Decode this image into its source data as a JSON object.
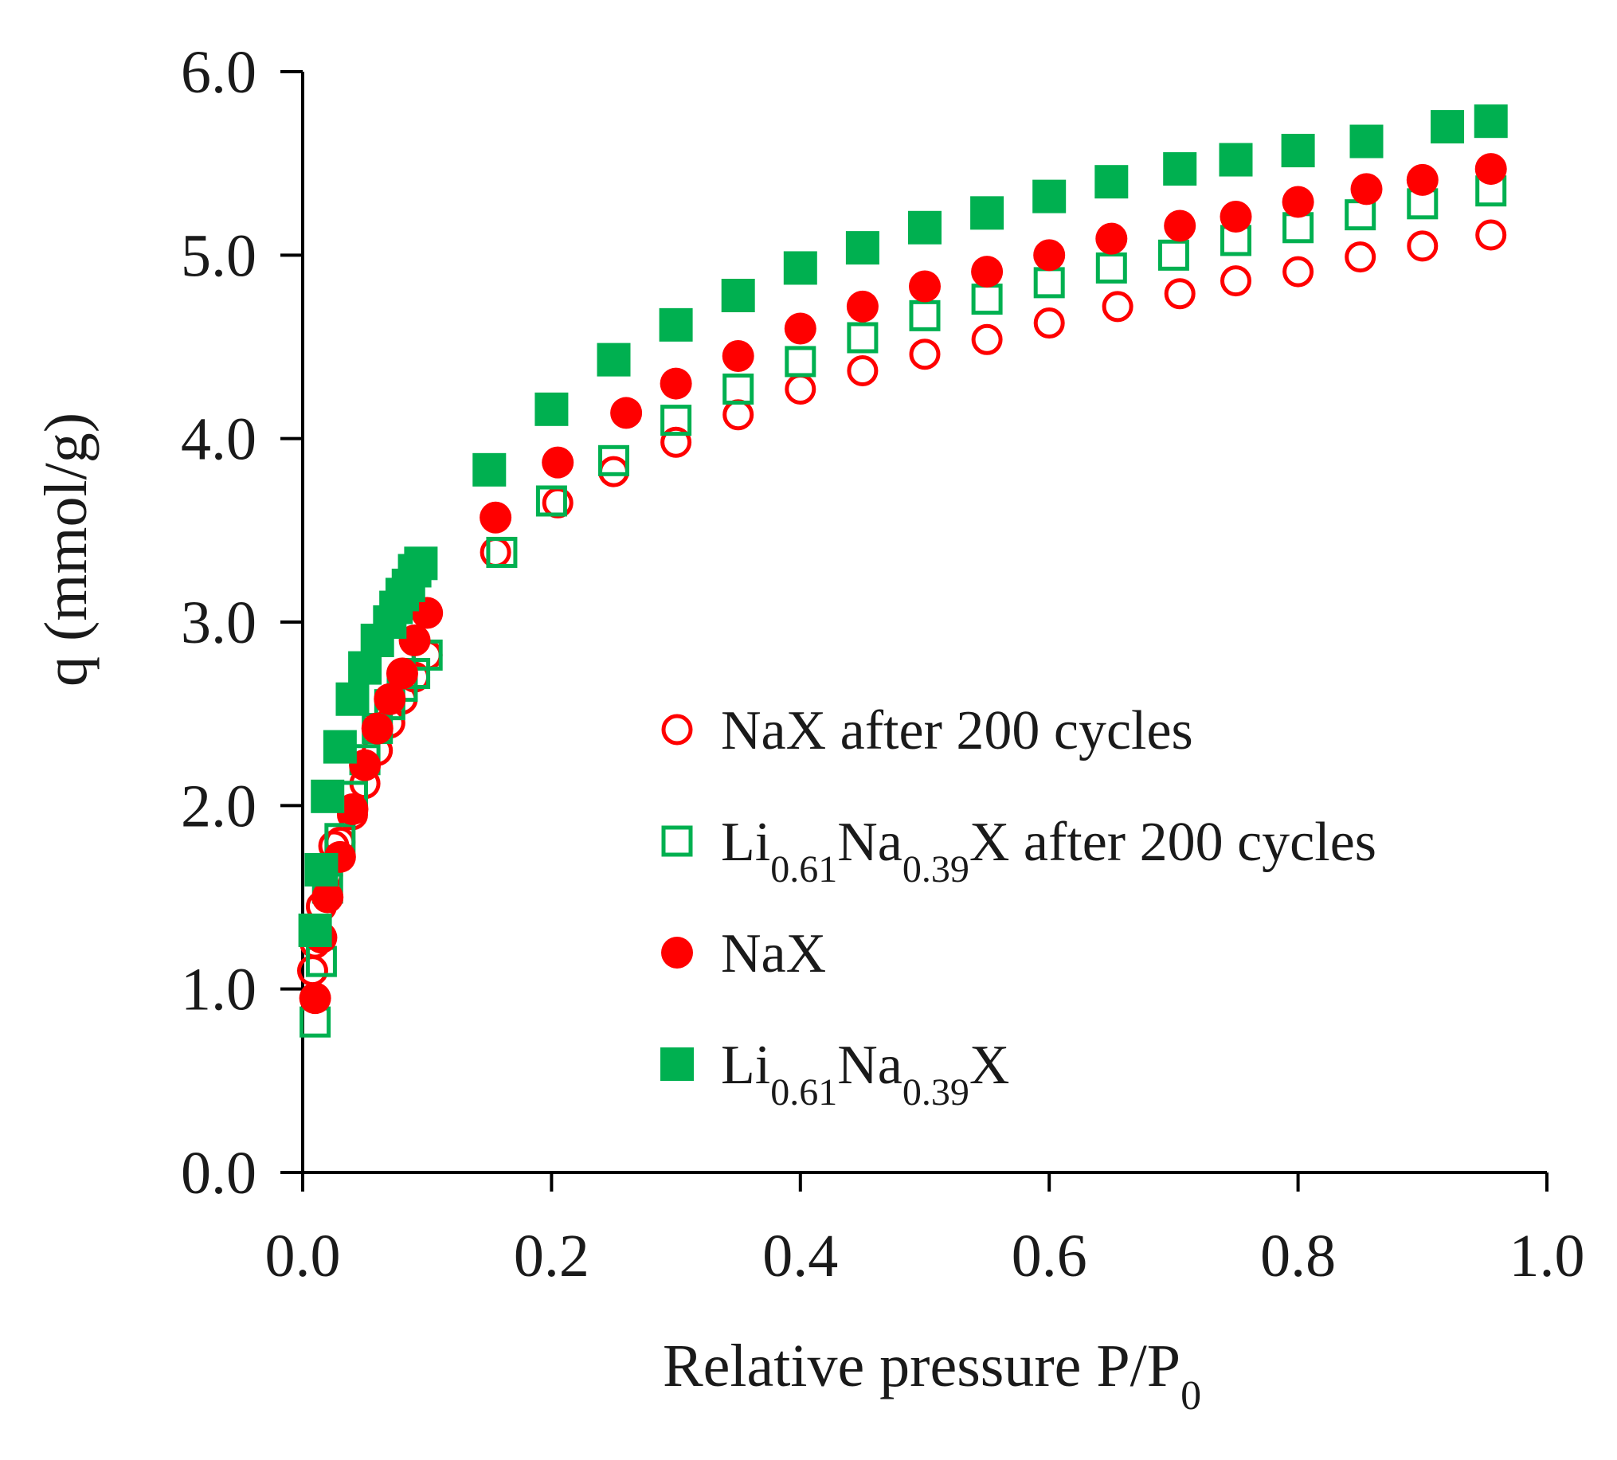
{
  "chart_data": {
    "type": "scatter",
    "title": "",
    "xlabel": "Relative pressure P/P",
    "xlabel_sub": "0",
    "ylabel": "q (mmol/g)",
    "xlim": [
      0.0,
      1.0
    ],
    "ylim": [
      0.0,
      6.0
    ],
    "x_ticks": [
      "0.0",
      "0.2",
      "0.4",
      "0.6",
      "0.8",
      "1.0"
    ],
    "y_ticks": [
      "0.0",
      "1.0",
      "2.0",
      "3.0",
      "4.0",
      "5.0",
      "6.0"
    ],
    "grid": false,
    "legend_position": "center-right",
    "series": [
      {
        "name": "NaX after 200 cycles",
        "label_parts": [
          {
            "t": "NaX after 200 cycles"
          }
        ],
        "marker": "circle",
        "filled": false,
        "color": "#ff0000",
        "x": [
          0.008,
          0.01,
          0.015,
          0.02,
          0.025,
          0.03,
          0.04,
          0.05,
          0.06,
          0.07,
          0.08,
          0.09,
          0.1,
          0.155,
          0.205,
          0.25,
          0.3,
          0.35,
          0.4,
          0.45,
          0.5,
          0.55,
          0.6,
          0.655,
          0.705,
          0.75,
          0.8,
          0.85,
          0.9,
          0.955
        ],
        "y": [
          1.1,
          1.25,
          1.45,
          1.62,
          1.78,
          1.8,
          1.95,
          2.12,
          2.3,
          2.45,
          2.58,
          2.7,
          2.82,
          3.38,
          3.65,
          3.82,
          3.98,
          4.13,
          4.27,
          4.37,
          4.46,
          4.54,
          4.63,
          4.72,
          4.79,
          4.86,
          4.91,
          4.99,
          5.05,
          5.11
        ]
      },
      {
        "name": "Li0.61Na0.39X after 200 cycles",
        "label_parts": [
          {
            "t": "Li"
          },
          {
            "t": "0.61",
            "sub": true
          },
          {
            "t": "Na"
          },
          {
            "t": "0.39",
            "sub": true
          },
          {
            "t": "X after 200 cycles"
          }
        ],
        "marker": "square",
        "filled": false,
        "color": "#00b050",
        "x": [
          0.01,
          0.015,
          0.02,
          0.03,
          0.04,
          0.05,
          0.06,
          0.07,
          0.08,
          0.09,
          0.1,
          0.16,
          0.2,
          0.25,
          0.3,
          0.35,
          0.4,
          0.45,
          0.5,
          0.55,
          0.6,
          0.65,
          0.7,
          0.75,
          0.8,
          0.85,
          0.9,
          0.955
        ],
        "y": [
          0.82,
          1.15,
          1.55,
          1.82,
          2.05,
          2.25,
          2.42,
          2.55,
          2.65,
          2.72,
          2.82,
          3.38,
          3.66,
          3.88,
          4.1,
          4.27,
          4.42,
          4.55,
          4.67,
          4.76,
          4.85,
          4.93,
          5.0,
          5.08,
          5.15,
          5.22,
          5.28,
          5.35
        ]
      },
      {
        "name": "NaX",
        "label_parts": [
          {
            "t": "NaX"
          }
        ],
        "marker": "circle",
        "filled": true,
        "color": "#ff0000",
        "x": [
          0.01,
          0.015,
          0.02,
          0.03,
          0.04,
          0.05,
          0.06,
          0.07,
          0.08,
          0.09,
          0.1,
          0.155,
          0.205,
          0.26,
          0.3,
          0.35,
          0.4,
          0.45,
          0.5,
          0.55,
          0.6,
          0.65,
          0.705,
          0.75,
          0.8,
          0.855,
          0.9,
          0.955
        ],
        "y": [
          0.95,
          1.28,
          1.5,
          1.72,
          1.98,
          2.22,
          2.42,
          2.58,
          2.72,
          2.9,
          3.05,
          3.57,
          3.87,
          4.14,
          4.3,
          4.45,
          4.6,
          4.72,
          4.83,
          4.91,
          5.0,
          5.09,
          5.16,
          5.21,
          5.29,
          5.36,
          5.41,
          5.47
        ]
      },
      {
        "name": "Li0.61Na0.39X",
        "label_parts": [
          {
            "t": "Li"
          },
          {
            "t": "0.61",
            "sub": true
          },
          {
            "t": "Na"
          },
          {
            "t": "0.39",
            "sub": true
          },
          {
            "t": "X"
          }
        ],
        "marker": "square",
        "filled": true,
        "color": "#00b050",
        "x": [
          0.01,
          0.015,
          0.02,
          0.03,
          0.04,
          0.05,
          0.06,
          0.07,
          0.075,
          0.08,
          0.085,
          0.09,
          0.095,
          0.15,
          0.2,
          0.25,
          0.3,
          0.35,
          0.4,
          0.45,
          0.5,
          0.55,
          0.6,
          0.65,
          0.705,
          0.75,
          0.8,
          0.855,
          0.92,
          0.955
        ],
        "y": [
          1.32,
          1.65,
          2.05,
          2.32,
          2.58,
          2.75,
          2.9,
          3.0,
          3.08,
          3.15,
          3.2,
          3.28,
          3.32,
          3.83,
          4.16,
          4.43,
          4.62,
          4.78,
          4.93,
          5.04,
          5.15,
          5.23,
          5.32,
          5.4,
          5.47,
          5.52,
          5.57,
          5.62,
          5.7,
          5.73
        ]
      }
    ]
  }
}
